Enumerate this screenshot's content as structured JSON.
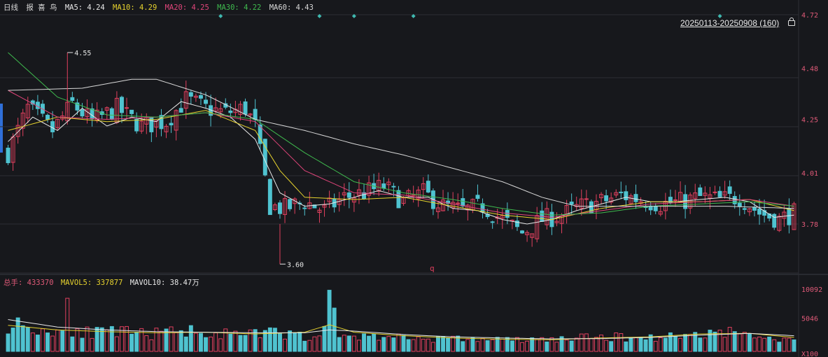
{
  "header": {
    "period": "日线",
    "name": "报 喜 鸟",
    "ma": [
      {
        "label": "MA5: 4.24",
        "color": "#e8e8e8"
      },
      {
        "label": "MA10: 4.29",
        "color": "#e6d22e"
      },
      {
        "label": "MA20: 4.25",
        "color": "#e0457a"
      },
      {
        "label": "MA30: 4.22",
        "color": "#3fb94e"
      },
      {
        "label": "MA60: 4.43",
        "color": "#d8d8d8"
      }
    ],
    "range": "20250113-20250908 (160)"
  },
  "volume_header": {
    "items": [
      {
        "label": "总手: 433370",
        "color": "#e05a78"
      },
      {
        "label": "MAVOL5: 337877",
        "color": "#e6d22e"
      },
      {
        "label": "MAVOL10: 38.47万",
        "color": "#e8e8e8"
      }
    ]
  },
  "colors": {
    "up": "#e0405e",
    "down": "#4fc3d0",
    "grid": "#2c2e35",
    "axis": "#e05a78"
  },
  "chart_data": {
    "type": "candlestick",
    "x": {
      "start": "20250113",
      "end": "20250908",
      "count": 160
    },
    "price_ticks": [
      4.72,
      4.48,
      4.25,
      4.01,
      3.78
    ],
    "ylim": [
      3.6,
      4.72
    ],
    "annotations": [
      {
        "label": "4.55",
        "value": 4.55,
        "kind": "high"
      },
      {
        "label": "3.60",
        "value": 3.6,
        "kind": "low"
      }
    ],
    "marker_label": "q",
    "volume_ticks": [
      "10092",
      "5046",
      "X100"
    ],
    "volume_max": 10092,
    "price_path": [
      [
        0,
        4.1
      ],
      [
        4,
        4.3
      ],
      [
        9,
        4.2
      ],
      [
        13,
        4.32
      ],
      [
        17,
        4.24
      ],
      [
        22,
        4.3
      ],
      [
        27,
        4.22
      ],
      [
        32,
        4.24
      ],
      [
        36,
        4.34
      ],
      [
        40,
        4.3
      ],
      [
        44,
        4.28
      ],
      [
        48,
        4.3
      ],
      [
        50,
        4.22
      ],
      [
        53,
        3.86
      ],
      [
        56,
        3.85
      ],
      [
        60,
        3.88
      ],
      [
        64,
        3.84
      ],
      [
        68,
        3.9
      ],
      [
        72,
        3.92
      ],
      [
        76,
        3.95
      ],
      [
        80,
        3.88
      ],
      [
        84,
        3.92
      ],
      [
        88,
        3.86
      ],
      [
        92,
        3.84
      ],
      [
        96,
        3.86
      ],
      [
        100,
        3.8
      ],
      [
        104,
        3.74
      ],
      [
        108,
        3.8
      ],
      [
        112,
        3.82
      ],
      [
        116,
        3.86
      ],
      [
        120,
        3.88
      ],
      [
        124,
        3.91
      ],
      [
        128,
        3.89
      ],
      [
        132,
        3.87
      ],
      [
        136,
        3.88
      ],
      [
        140,
        3.9
      ],
      [
        144,
        3.89
      ],
      [
        148,
        3.9
      ],
      [
        152,
        3.83
      ],
      [
        156,
        3.8
      ],
      [
        159,
        3.83
      ]
    ],
    "volume_path": [
      [
        0,
        4200
      ],
      [
        4,
        3500
      ],
      [
        9,
        2600
      ],
      [
        13,
        3200
      ],
      [
        17,
        2400
      ],
      [
        22,
        2600
      ],
      [
        27,
        2300
      ],
      [
        32,
        2400
      ],
      [
        36,
        3000
      ],
      [
        40,
        2600
      ],
      [
        44,
        2200
      ],
      [
        48,
        2000
      ],
      [
        53,
        2600
      ],
      [
        56,
        2200
      ],
      [
        60,
        1900
      ],
      [
        64,
        2500
      ],
      [
        68,
        2100
      ],
      [
        72,
        1800
      ],
      [
        76,
        1900
      ],
      [
        80,
        1700
      ],
      [
        84,
        1500
      ],
      [
        88,
        1500
      ],
      [
        92,
        1400
      ],
      [
        96,
        1400
      ],
      [
        100,
        1300
      ],
      [
        104,
        1200
      ],
      [
        108,
        1300
      ],
      [
        112,
        1400
      ],
      [
        116,
        1600
      ],
      [
        120,
        1800
      ],
      [
        124,
        1700
      ],
      [
        128,
        1600
      ],
      [
        132,
        1800
      ],
      [
        136,
        1900
      ],
      [
        140,
        2400
      ],
      [
        144,
        2700
      ],
      [
        148,
        2500
      ],
      [
        152,
        1600
      ],
      [
        156,
        1400
      ],
      [
        159,
        1500
      ]
    ],
    "spikes": [
      {
        "index": 12,
        "value": 8500
      },
      {
        "index": 65,
        "value": 9900
      },
      {
        "index": 66,
        "value": 6800
      }
    ],
    "ma_lines": [
      {
        "name": "MA5",
        "color": "#e8e8e8",
        "points": [
          [
            0,
            4.15
          ],
          [
            5,
            4.26
          ],
          [
            10,
            4.2
          ],
          [
            15,
            4.3
          ],
          [
            20,
            4.22
          ],
          [
            25,
            4.26
          ],
          [
            30,
            4.24
          ],
          [
            35,
            4.33
          ],
          [
            40,
            4.3
          ],
          [
            45,
            4.26
          ],
          [
            50,
            4.16
          ],
          [
            55,
            3.92
          ],
          [
            60,
            3.86
          ],
          [
            65,
            3.87
          ],
          [
            70,
            3.9
          ],
          [
            75,
            3.93
          ],
          [
            80,
            3.9
          ],
          [
            85,
            3.9
          ],
          [
            90,
            3.85
          ],
          [
            95,
            3.84
          ],
          [
            100,
            3.8
          ],
          [
            105,
            3.78
          ],
          [
            110,
            3.8
          ],
          [
            115,
            3.84
          ],
          [
            120,
            3.87
          ],
          [
            125,
            3.9
          ],
          [
            130,
            3.88
          ],
          [
            135,
            3.88
          ],
          [
            140,
            3.89
          ],
          [
            145,
            3.9
          ],
          [
            150,
            3.88
          ],
          [
            155,
            3.81
          ],
          [
            159,
            3.82
          ]
        ]
      },
      {
        "name": "MA10",
        "color": "#e6d22e",
        "points": [
          [
            0,
            4.2
          ],
          [
            10,
            4.26
          ],
          [
            20,
            4.24
          ],
          [
            30,
            4.25
          ],
          [
            40,
            4.29
          ],
          [
            50,
            4.2
          ],
          [
            55,
            4.02
          ],
          [
            60,
            3.9
          ],
          [
            70,
            3.89
          ],
          [
            80,
            3.9
          ],
          [
            90,
            3.86
          ],
          [
            100,
            3.82
          ],
          [
            110,
            3.8
          ],
          [
            120,
            3.85
          ],
          [
            130,
            3.88
          ],
          [
            140,
            3.88
          ],
          [
            150,
            3.89
          ],
          [
            159,
            3.84
          ]
        ]
      },
      {
        "name": "MA20",
        "color": "#e0457a",
        "points": [
          [
            0,
            4.38
          ],
          [
            10,
            4.26
          ],
          [
            20,
            4.25
          ],
          [
            30,
            4.26
          ],
          [
            40,
            4.28
          ],
          [
            50,
            4.24
          ],
          [
            60,
            4.02
          ],
          [
            70,
            3.92
          ],
          [
            80,
            3.91
          ],
          [
            90,
            3.87
          ],
          [
            100,
            3.83
          ],
          [
            110,
            3.81
          ],
          [
            120,
            3.84
          ],
          [
            130,
            3.87
          ],
          [
            140,
            3.88
          ],
          [
            150,
            3.89
          ],
          [
            159,
            3.86
          ]
        ]
      },
      {
        "name": "MA30",
        "color": "#3fb94e",
        "points": [
          [
            0,
            4.55
          ],
          [
            10,
            4.35
          ],
          [
            20,
            4.27
          ],
          [
            30,
            4.26
          ],
          [
            40,
            4.28
          ],
          [
            50,
            4.25
          ],
          [
            60,
            4.1
          ],
          [
            70,
            3.97
          ],
          [
            80,
            3.92
          ],
          [
            90,
            3.89
          ],
          [
            100,
            3.85
          ],
          [
            110,
            3.82
          ],
          [
            120,
            3.83
          ],
          [
            130,
            3.86
          ],
          [
            140,
            3.87
          ],
          [
            150,
            3.88
          ],
          [
            159,
            3.86
          ]
        ]
      },
      {
        "name": "MA60",
        "color": "#d8d8d8",
        "points": [
          [
            0,
            4.38
          ],
          [
            15,
            4.39
          ],
          [
            25,
            4.43
          ],
          [
            30,
            4.43
          ],
          [
            40,
            4.36
          ],
          [
            50,
            4.25
          ],
          [
            60,
            4.2
          ],
          [
            70,
            4.14
          ],
          [
            80,
            4.09
          ],
          [
            90,
            4.03
          ],
          [
            100,
            3.97
          ],
          [
            108,
            3.9
          ],
          [
            115,
            3.86
          ],
          [
            125,
            3.86
          ],
          [
            135,
            3.86
          ],
          [
            145,
            3.86
          ],
          [
            159,
            3.85
          ]
        ]
      }
    ],
    "volume_ma_lines": [
      {
        "name": "MAVOL5",
        "color": "#e6d22e",
        "points": [
          [
            0,
            3800
          ],
          [
            10,
            3000
          ],
          [
            20,
            2700
          ],
          [
            30,
            2500
          ],
          [
            40,
            2600
          ],
          [
            50,
            2300
          ],
          [
            60,
            2600
          ],
          [
            65,
            3900
          ],
          [
            70,
            2600
          ],
          [
            80,
            2000
          ],
          [
            90,
            1600
          ],
          [
            100,
            1400
          ],
          [
            110,
            1300
          ],
          [
            120,
            1600
          ],
          [
            130,
            1800
          ],
          [
            140,
            2300
          ],
          [
            150,
            2400
          ],
          [
            159,
            1700
          ]
        ]
      },
      {
        "name": "MAVOL10",
        "color": "#e8e8e8",
        "points": [
          [
            0,
            4800
          ],
          [
            10,
            3500
          ],
          [
            20,
            3000
          ],
          [
            30,
            2700
          ],
          [
            40,
            2600
          ],
          [
            50,
            2500
          ],
          [
            60,
            2500
          ],
          [
            65,
            3000
          ],
          [
            70,
            2800
          ],
          [
            80,
            2200
          ],
          [
            90,
            1800
          ],
          [
            100,
            1600
          ],
          [
            110,
            1450
          ],
          [
            120,
            1500
          ],
          [
            130,
            1700
          ],
          [
            140,
            2100
          ],
          [
            150,
            2400
          ],
          [
            159,
            2000
          ]
        ]
      }
    ],
    "top_markers": [
      43,
      63,
      70,
      82,
      144
    ]
  }
}
